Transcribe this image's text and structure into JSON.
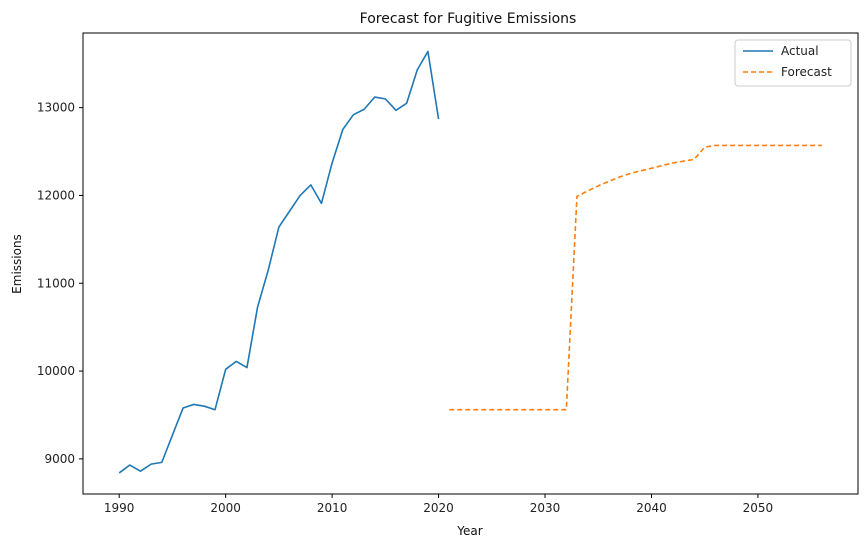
{
  "chart_data": {
    "type": "line",
    "title": "Forecast for Fugitive Emissions",
    "xlabel": "Year",
    "ylabel": "Emissions",
    "xlim": [
      1986.6,
      2059.4
    ],
    "ylim": [
      8600,
      13850
    ],
    "xticks": [
      1990,
      2000,
      2010,
      2020,
      2030,
      2040,
      2050
    ],
    "yticks": [
      9000,
      10000,
      11000,
      12000,
      13000
    ],
    "grid": false,
    "legend_position": "top-right",
    "series": [
      {
        "name": "Actual",
        "color": "#1f77b4",
        "style": "solid",
        "x": [
          1990,
          1991,
          1992,
          1993,
          1994,
          1995,
          1996,
          1997,
          1998,
          1999,
          2000,
          2001,
          2002,
          2003,
          2004,
          2005,
          2006,
          2007,
          2008,
          2009,
          2010,
          2011,
          2012,
          2013,
          2014,
          2015,
          2016,
          2017,
          2018,
          2019,
          2020
        ],
        "y": [
          8840,
          8930,
          8860,
          8940,
          8960,
          9270,
          9580,
          9620,
          9600,
          9560,
          10020,
          10110,
          10040,
          10730,
          11150,
          11640,
          11820,
          12000,
          12120,
          11910,
          12370,
          12750,
          12920,
          12980,
          13120,
          13100,
          12970,
          13050,
          13430,
          13640,
          12870
        ]
      },
      {
        "name": "Forecast",
        "color": "#ff7f0e",
        "style": "dashed",
        "x": [
          2021,
          2022,
          2023,
          2024,
          2025,
          2026,
          2027,
          2028,
          2029,
          2030,
          2031,
          2032,
          2033,
          2034,
          2035,
          2036,
          2037,
          2038,
          2039,
          2040,
          2041,
          2042,
          2043,
          2044,
          2045,
          2046,
          2047,
          2048,
          2049,
          2050,
          2051,
          2052,
          2053,
          2054,
          2055,
          2056
        ],
        "y": [
          9560,
          9560,
          9560,
          9560,
          9560,
          9560,
          9560,
          9560,
          9560,
          9560,
          9560,
          9560,
          11990,
          12050,
          12110,
          12160,
          12210,
          12250,
          12280,
          12310,
          12340,
          12370,
          12390,
          12410,
          12550,
          12570,
          12570,
          12570,
          12570,
          12570,
          12570,
          12570,
          12570,
          12570,
          12570,
          12570
        ]
      }
    ]
  }
}
